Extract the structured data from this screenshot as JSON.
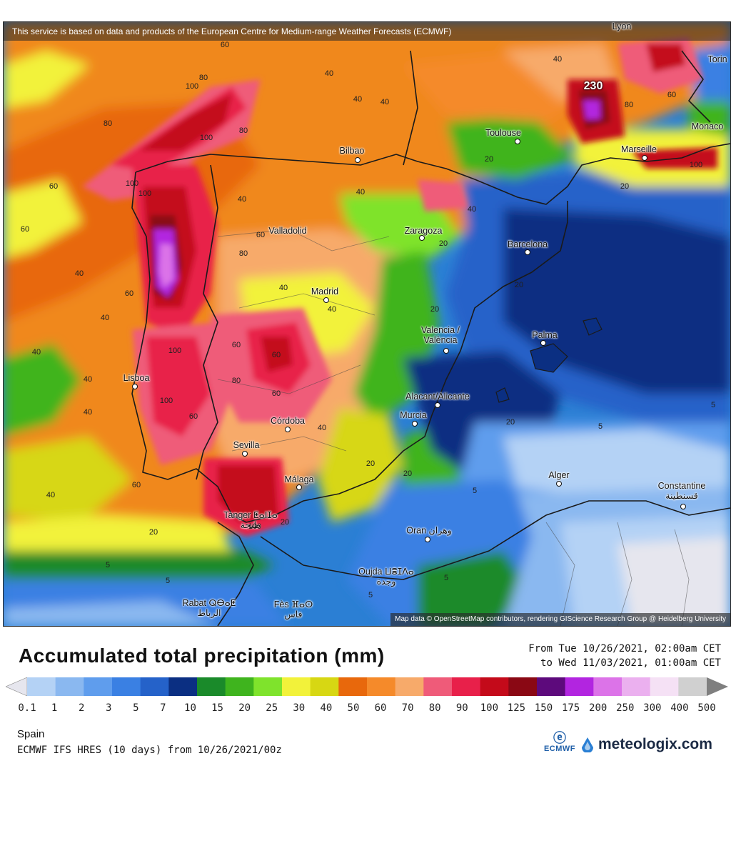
{
  "map": {
    "attribution_top": "This service is based on data and products of the European Centre for Medium-range Weather Forecasts (ECMWF)",
    "attribution_bottom": "Map data © OpenStreetMap contributors, rendering GIScience Research Group @ Heidelberg University",
    "max_label": "230",
    "cities": [
      {
        "id": "lyon",
        "name": "Lyon"
      },
      {
        "id": "torino",
        "name": "Torin"
      },
      {
        "id": "toulouse",
        "name": "Toulouse"
      },
      {
        "id": "monaco",
        "name": "Monaco"
      },
      {
        "id": "marseille",
        "name": "Marseille"
      },
      {
        "id": "bilbao",
        "name": "Bilbao"
      },
      {
        "id": "zaragoza",
        "name": "Zaragoza"
      },
      {
        "id": "barcelona",
        "name": "Barcelona"
      },
      {
        "id": "valladolid",
        "name": "Valladolid"
      },
      {
        "id": "madrid",
        "name": "Madrid"
      },
      {
        "id": "valencia",
        "name": "Valencia /\nValència"
      },
      {
        "id": "palma",
        "name": "Palma"
      },
      {
        "id": "lisboa",
        "name": "Lisboa"
      },
      {
        "id": "alicante",
        "name": "Alacant/Alicante"
      },
      {
        "id": "murcia",
        "name": "Murcia"
      },
      {
        "id": "cordoba",
        "name": "Córdoba"
      },
      {
        "id": "sevilla",
        "name": "Sevilla"
      },
      {
        "id": "malaga",
        "name": "Málaga"
      },
      {
        "id": "tanger",
        "name": "Tanger ⵟⴰⵏⵊⴰ\nطنجة"
      },
      {
        "id": "alger",
        "name": "Alger"
      },
      {
        "id": "constantine",
        "name": "Constantine\nقسنطينة"
      },
      {
        "id": "oran",
        "name": "Oran وهران"
      },
      {
        "id": "oujda",
        "name": "Oujda ⵡⴻⵊⴷⴰ\nوجدة"
      },
      {
        "id": "rabat",
        "name": "Rabat ⵕⴱⴰⵟ\nالرباط"
      },
      {
        "id": "fes",
        "name": "Fès ⴼⴰⵙ\nفاس"
      }
    ],
    "contour_labels": [
      "60",
      "80",
      "100",
      "80",
      "100",
      "100",
      "100",
      "80",
      "60",
      "40",
      "60",
      "40",
      "40",
      "40",
      "40",
      "60",
      "40",
      "60",
      "40",
      "40",
      "40",
      "60",
      "80",
      "40",
      "40",
      "20",
      "40",
      "20",
      "20",
      "60",
      "60",
      "100",
      "60",
      "80",
      "100",
      "60",
      "100",
      "20",
      "20",
      "20",
      "5",
      "5",
      "5",
      "5",
      "20",
      "5",
      "5",
      "5",
      "20",
      "20",
      "40",
      "40",
      "60",
      "80",
      "100",
      "40",
      "20",
      "40"
    ]
  },
  "title": "Accumulated total precipitation (mm)",
  "period": {
    "from": "From Tue 10/26/2021, 02:00am CET",
    "to": "to Wed 11/03/2021, 01:00am CET"
  },
  "legend": {
    "labels": [
      "0.1",
      "1",
      "2",
      "3",
      "5",
      "7",
      "10",
      "15",
      "20",
      "25",
      "30",
      "40",
      "50",
      "60",
      "70",
      "80",
      "90",
      "100",
      "125",
      "150",
      "175",
      "200",
      "250",
      "300",
      "400",
      "500"
    ],
    "colors": [
      "#e6e6ee",
      "#b4d2f5",
      "#8ab8f0",
      "#5f9ded",
      "#3a80e3",
      "#2562c9",
      "#0b2f82",
      "#1a8a2a",
      "#3fb41e",
      "#7fe32c",
      "#f2f23a",
      "#d7d713",
      "#e8680c",
      "#f58a2a",
      "#f7aa6a",
      "#ef5b79",
      "#e8204a",
      "#c40a1a",
      "#8a0814",
      "#5d0a7c",
      "#b225e0",
      "#dc73e8",
      "#ebb0ef",
      "#f5e1f5",
      "#d0d0d0",
      "#7f7f7f"
    ]
  },
  "region": "Spain",
  "model": "ECMWF IFS HRES (10 days) from 10/26/2021/00z",
  "logos": {
    "ecmwf": "ECMWF",
    "meteologix": "meteologix.com"
  }
}
